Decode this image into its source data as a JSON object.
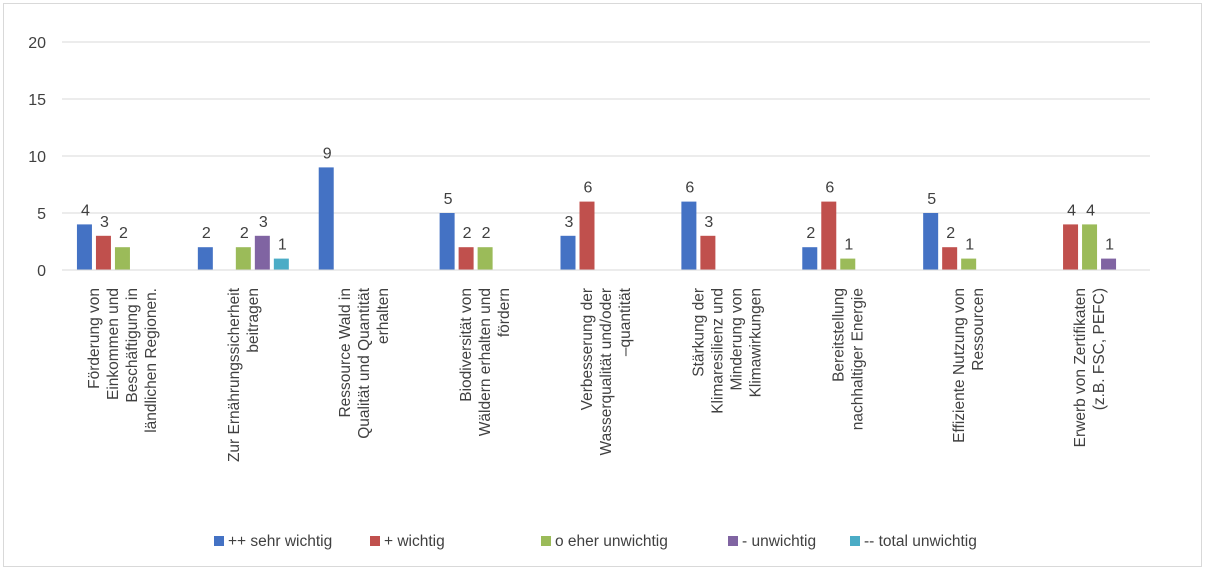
{
  "chart_data": {
    "type": "bar",
    "title": "",
    "xlabel": "",
    "ylabel": "",
    "ylim": [
      0,
      20
    ],
    "yticks": [
      0,
      5,
      10,
      15,
      20
    ],
    "grid": true,
    "legend_position": "bottom",
    "categories": [
      [
        "Förderung von",
        "Einkommen und",
        "Beschäftigung in",
        "ländlichen Regionen."
      ],
      [
        "Zur Ernährungssicherheit",
        "beitragen"
      ],
      [
        "Ressource Wald in",
        "Qualität und Quantität",
        "erhalten"
      ],
      [
        "Biodiversität von",
        "Wäldern erhalten und",
        "fördern"
      ],
      [
        "Verbesserung der",
        "Wasserqualität und/oder",
        "–quantität"
      ],
      [
        "Stärkung der",
        "Klimaresilienz und",
        "Minderung von",
        "Klimawirkungen"
      ],
      [
        "Bereitstellung",
        "nachhaltiger Energie"
      ],
      [
        "Effiziente Nutzung von",
        "Ressourcen"
      ],
      [
        "Erwerb von Zertifikaten",
        "(z.B. FSC, PEFC)"
      ]
    ],
    "series": [
      {
        "name": "++ sehr wichtig",
        "color": "#4472c4",
        "values": [
          4,
          2,
          9,
          5,
          3,
          6,
          2,
          5,
          null
        ]
      },
      {
        "name": "+ wichtig",
        "color": "#c0504d",
        "values": [
          3,
          null,
          null,
          2,
          6,
          3,
          6,
          2,
          4
        ]
      },
      {
        "name": "o eher unwichtig",
        "color": "#9bbb59",
        "values": [
          2,
          2,
          null,
          2,
          null,
          null,
          1,
          1,
          4
        ]
      },
      {
        "name": "- unwichtig",
        "color": "#8064a2",
        "values": [
          null,
          3,
          null,
          null,
          null,
          null,
          null,
          null,
          1
        ]
      },
      {
        "name": "-- total unwichtig",
        "color": "#4bacc6",
        "values": [
          null,
          1,
          null,
          null,
          null,
          null,
          null,
          null,
          null
        ]
      }
    ]
  }
}
